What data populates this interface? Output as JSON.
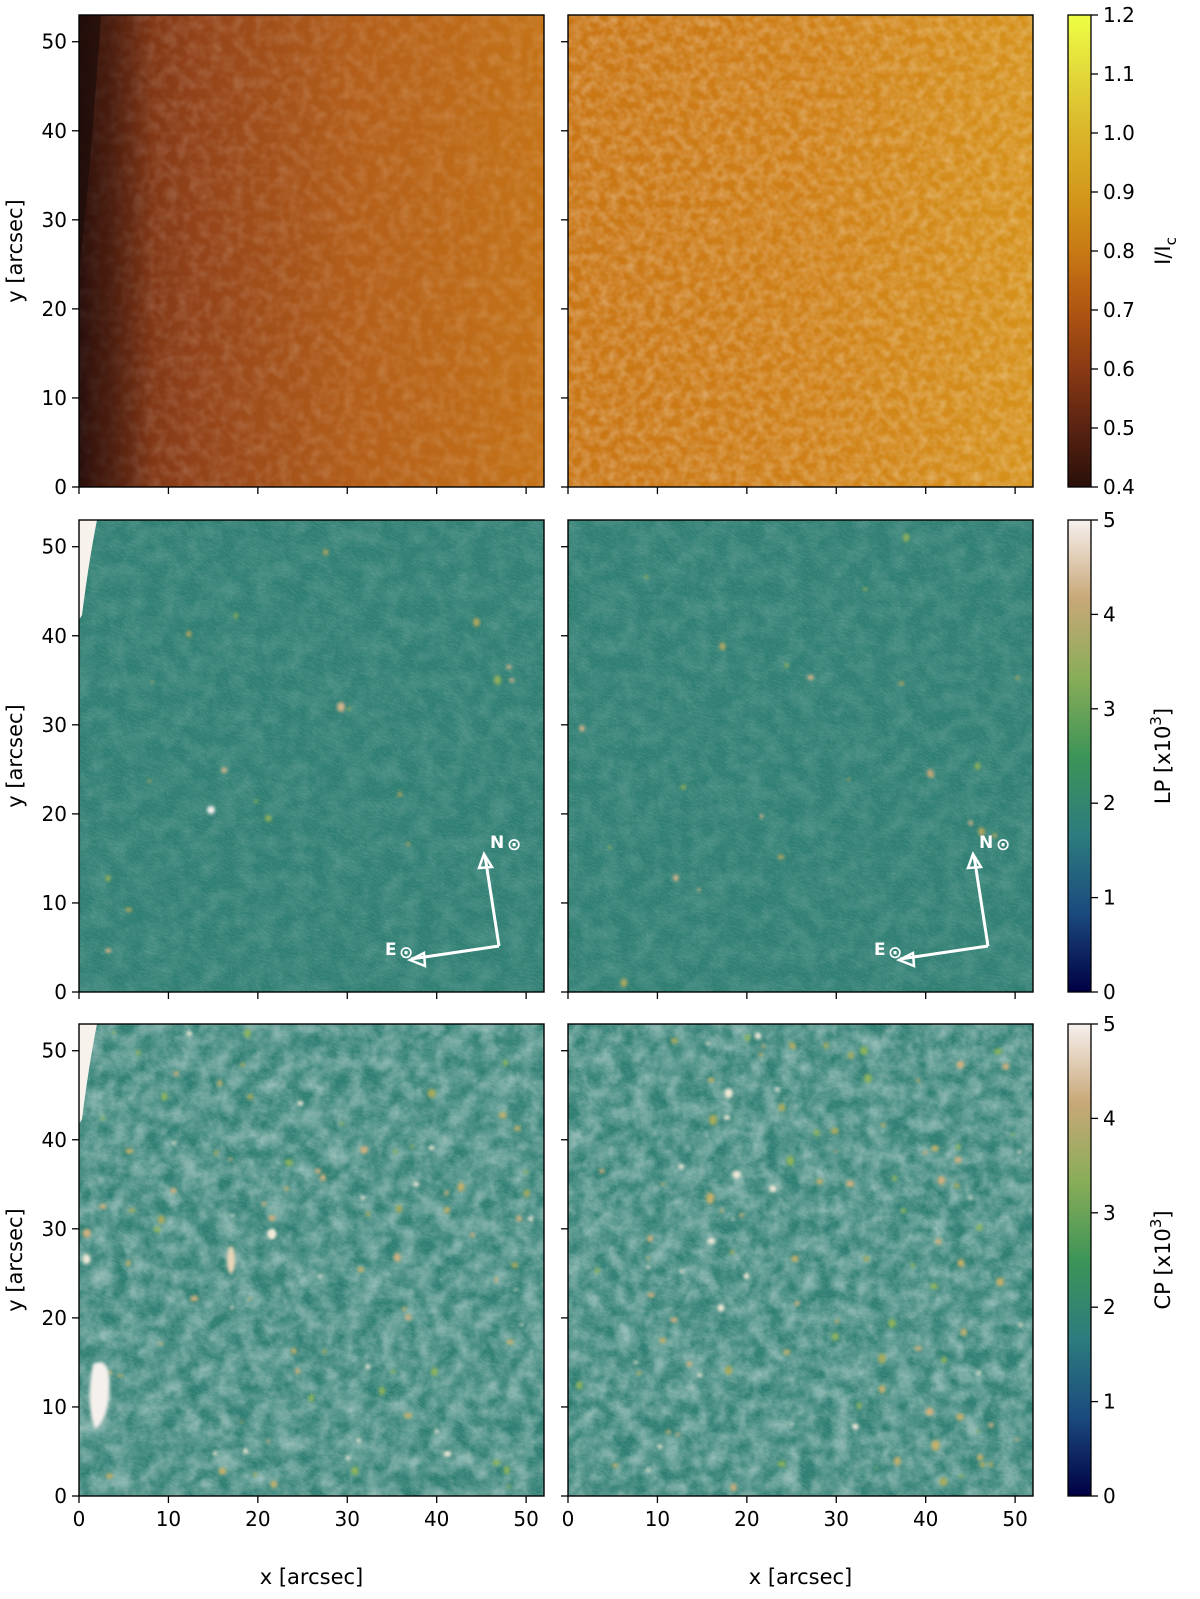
{
  "figure": {
    "xlabel": "x [arcsec]",
    "ylabel": "y [arcsec]",
    "compass": {
      "north": "N",
      "east": "E",
      "sun_symbol": "⊙"
    }
  },
  "chart_data": [
    {
      "type": "heatmap",
      "row": 0,
      "quantity": "I/I_c",
      "colorbar": {
        "label": "I/I",
        "label_sub": "c",
        "range": [
          0.4,
          1.2
        ],
        "ticks": [
          "0.4",
          "0.5",
          "0.6",
          "0.7",
          "0.8",
          "0.9",
          "1.0",
          "1.1",
          "1.2"
        ],
        "colormap": [
          "#2a0f0a",
          "#5a2312",
          "#8a3a14",
          "#b05612",
          "#c87914",
          "#d39a1c",
          "#dab52a",
          "#e2d83a",
          "#eeff44"
        ]
      },
      "xlim": [
        0,
        52
      ],
      "ylim": [
        0,
        53
      ],
      "xticks": [
        "0",
        "10",
        "20",
        "30",
        "40",
        "50"
      ],
      "yticks": [
        "0",
        "10",
        "20",
        "30",
        "40",
        "50"
      ],
      "panels": [
        {
          "position": "left",
          "mean_range": [
            0.45,
            0.85
          ]
        },
        {
          "position": "right",
          "mean_range": [
            0.8,
            0.97
          ]
        }
      ]
    },
    {
      "type": "heatmap",
      "row": 1,
      "quantity": "LP",
      "colorbar": {
        "label": "LP [x10",
        "label_sup": "3",
        "label_end": "]",
        "range": [
          0,
          5
        ],
        "ticks": [
          "0",
          "1",
          "2",
          "3",
          "4",
          "5"
        ],
        "colormap": [
          "#000044",
          "#1b4a7e",
          "#2d7c7e",
          "#3d9457",
          "#89ad58",
          "#c8a878",
          "#f7f0ee"
        ]
      },
      "xlim": [
        0,
        52
      ],
      "ylim": [
        0,
        53
      ],
      "xticks": [
        "0",
        "10",
        "20",
        "30",
        "40",
        "50"
      ],
      "yticks": [
        "0",
        "10",
        "20",
        "30",
        "40",
        "50"
      ],
      "panels": [
        {
          "position": "left"
        },
        {
          "position": "right"
        }
      ]
    },
    {
      "type": "heatmap",
      "row": 2,
      "quantity": "CP",
      "colorbar": {
        "label": "CP [x10",
        "label_sup": "3",
        "label_end": "]",
        "range": [
          0,
          5
        ],
        "ticks": [
          "0",
          "1",
          "2",
          "3",
          "4",
          "5"
        ],
        "colormap": [
          "#000044",
          "#1b4a7e",
          "#2d7c7e",
          "#3d9457",
          "#89ad58",
          "#c8a878",
          "#f7f0ee"
        ]
      },
      "xlim": [
        0,
        52
      ],
      "ylim": [
        0,
        53
      ],
      "xticks": [
        "0",
        "10",
        "20",
        "30",
        "40",
        "50"
      ],
      "yticks": [
        "0",
        "10",
        "20",
        "30",
        "40",
        "50"
      ],
      "panels": [
        {
          "position": "left"
        },
        {
          "position": "right"
        }
      ]
    }
  ]
}
